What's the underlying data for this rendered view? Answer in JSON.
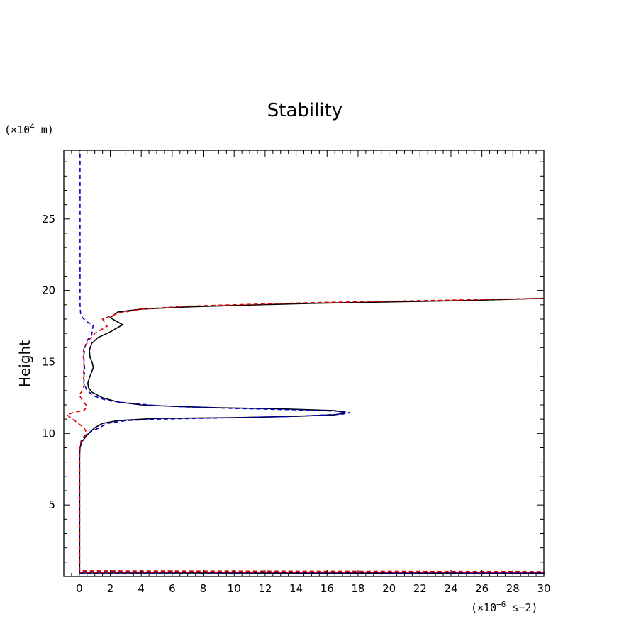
{
  "chart_data": {
    "type": "line",
    "title": "Stability",
    "ylabel": "Height",
    "y_unit_prefix": "(×10",
    "y_unit_exp": "4",
    "y_unit_suffix": " m)",
    "x_unit_prefix": "(×10",
    "x_unit_exp": "−6",
    "x_unit_suffix": " s−2)",
    "xlim": [
      -1,
      30
    ],
    "ylim": [
      0,
      29.8
    ],
    "xticks": [
      0,
      2,
      4,
      6,
      8,
      10,
      12,
      14,
      16,
      18,
      20,
      22,
      24,
      26,
      28,
      30
    ],
    "yticks": [
      5,
      10,
      15,
      20,
      25
    ],
    "grid": false,
    "series": [
      {
        "color": "#000000",
        "dash": "solid",
        "points": [
          [
            0.02,
            0.2
          ],
          [
            30,
            0.2
          ],
          [
            30,
            0.25
          ],
          [
            0.02,
            0.3
          ],
          [
            0.02,
            5
          ],
          [
            0.02,
            8.5
          ],
          [
            0.05,
            9.0
          ],
          [
            0.15,
            9.4
          ],
          [
            0.3,
            9.6
          ],
          [
            0.6,
            10.0
          ],
          [
            1.0,
            10.4
          ],
          [
            1.5,
            10.7
          ],
          [
            2.5,
            10.9
          ],
          [
            5,
            11.05
          ],
          [
            10,
            11.1
          ],
          [
            14,
            11.2
          ],
          [
            16.5,
            11.3
          ],
          [
            17.2,
            11.45
          ],
          [
            16.5,
            11.6
          ],
          [
            13,
            11.72
          ],
          [
            9,
            11.8
          ],
          [
            6,
            11.9
          ],
          [
            4,
            12.0
          ],
          [
            2.5,
            12.2
          ],
          [
            1.5,
            12.5
          ],
          [
            0.8,
            12.9
          ],
          [
            0.6,
            13.2
          ],
          [
            0.55,
            13.5
          ],
          [
            0.65,
            13.9
          ],
          [
            0.8,
            14.3
          ],
          [
            0.9,
            14.6
          ],
          [
            0.85,
            14.9
          ],
          [
            0.7,
            15.3
          ],
          [
            0.65,
            15.8
          ],
          [
            0.8,
            16.3
          ],
          [
            1.2,
            16.7
          ],
          [
            2.0,
            17.1
          ],
          [
            2.8,
            17.6
          ],
          [
            2.0,
            18.1
          ],
          [
            2.5,
            18.5
          ],
          [
            4,
            18.7
          ],
          [
            7,
            18.85
          ],
          [
            10,
            18.95
          ],
          [
            15,
            19.1
          ],
          [
            20,
            19.2
          ],
          [
            25,
            19.3
          ],
          [
            30,
            19.45
          ]
        ]
      },
      {
        "color": "#0000cc",
        "dash": "dashed",
        "points": [
          [
            0.02,
            0.25
          ],
          [
            30,
            0.25
          ],
          [
            30,
            0.3
          ],
          [
            0.02,
            0.35
          ],
          [
            0.02,
            5
          ],
          [
            0.02,
            8.5
          ],
          [
            0.05,
            9.0
          ],
          [
            0.12,
            9.5
          ],
          [
            0.3,
            9.8
          ],
          [
            0.7,
            10.1
          ],
          [
            1.3,
            10.4
          ],
          [
            1.8,
            10.7
          ],
          [
            3,
            10.9
          ],
          [
            5,
            11.0
          ],
          [
            10,
            11.1
          ],
          [
            14,
            11.2
          ],
          [
            17,
            11.35
          ],
          [
            17.5,
            11.45
          ],
          [
            17,
            11.55
          ],
          [
            14,
            11.65
          ],
          [
            10,
            11.75
          ],
          [
            7,
            11.85
          ],
          [
            5,
            11.95
          ],
          [
            3,
            12.15
          ],
          [
            1.8,
            12.3
          ],
          [
            1.0,
            12.6
          ],
          [
            0.5,
            13.0
          ],
          [
            0.3,
            13.5
          ],
          [
            0.3,
            14.0
          ],
          [
            0.35,
            14.5
          ],
          [
            0.3,
            15.0
          ],
          [
            0.3,
            15.5
          ],
          [
            0.35,
            16.0
          ],
          [
            0.5,
            16.5
          ],
          [
            0.8,
            16.9
          ],
          [
            0.9,
            17.6
          ],
          [
            0.5,
            17.8
          ],
          [
            0.2,
            18.1
          ],
          [
            0.08,
            18.4
          ],
          [
            0.05,
            19
          ],
          [
            0.05,
            20
          ],
          [
            0.05,
            25
          ],
          [
            0.05,
            29.8
          ]
        ]
      },
      {
        "color": "#dd0000",
        "dash": "dashed",
        "points": [
          [
            0.02,
            0.3
          ],
          [
            30,
            0.3
          ],
          [
            30,
            0.35
          ],
          [
            0.02,
            0.4
          ],
          [
            0.02,
            5
          ],
          [
            0.02,
            8.5
          ],
          [
            0.05,
            9.2
          ],
          [
            0.2,
            9.6
          ],
          [
            0.5,
            10.0
          ],
          [
            0.3,
            10.4
          ],
          [
            -0.3,
            10.9
          ],
          [
            -0.8,
            11.3
          ],
          [
            -0.3,
            11.5
          ],
          [
            0.3,
            11.6
          ],
          [
            0.5,
            11.9
          ],
          [
            0.2,
            12.3
          ],
          [
            0.0,
            12.7
          ],
          [
            0.2,
            13.0
          ],
          [
            0.35,
            13.5
          ],
          [
            0.25,
            14.0
          ],
          [
            0.3,
            14.5
          ],
          [
            0.3,
            15.0
          ],
          [
            0.25,
            15.5
          ],
          [
            0.3,
            16.0
          ],
          [
            0.6,
            16.5
          ],
          [
            1.0,
            17.0
          ],
          [
            1.8,
            17.5
          ],
          [
            1.5,
            18.0
          ],
          [
            2.5,
            18.4
          ],
          [
            4,
            18.7
          ],
          [
            7,
            18.9
          ],
          [
            10,
            19.0
          ],
          [
            15,
            19.15
          ],
          [
            20,
            19.25
          ],
          [
            25,
            19.35
          ],
          [
            30,
            19.45
          ]
        ]
      }
    ]
  }
}
